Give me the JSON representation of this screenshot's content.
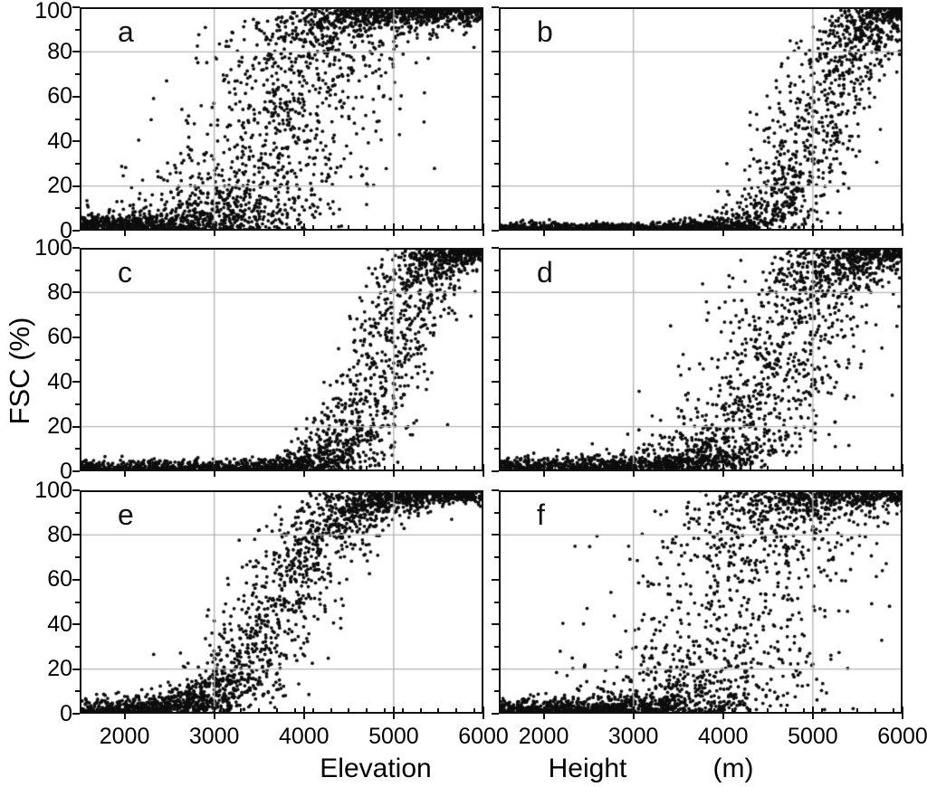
{
  "figure": {
    "background": "#ffffff"
  },
  "chart_data": {
    "type": "scatter",
    "title": "",
    "ylabel": "FSC (%)",
    "xlabel_parts": [
      "Elevation",
      "Height",
      "(m)"
    ],
    "x_range": [
      1500,
      6000
    ],
    "y_range": [
      0,
      100
    ],
    "x_major_ticks": [
      2000,
      3000,
      4000,
      5000,
      6000
    ],
    "x_minor_step": 200,
    "y_major_ticks": [
      0,
      20,
      40,
      60,
      80,
      100
    ],
    "y_minor_step": 10,
    "x_gridlines": [
      3000,
      5000
    ],
    "y_gridlines": [
      20,
      80
    ],
    "grid_color": "#b5b5b5",
    "point_color": "#0d0d0d",
    "axis_color": "#111111",
    "point_radius": 1.9,
    "panels": [
      {
        "label": "a",
        "row": 0,
        "col": 0,
        "model": {
          "n": 3300,
          "midpoint": 3800,
          "spread": 270,
          "jitter": 560,
          "noise": 3.5,
          "seed": 11
        }
      },
      {
        "label": "b",
        "row": 0,
        "col": 1,
        "model": {
          "n": 2700,
          "midpoint": 5060,
          "spread": 250,
          "jitter": 300,
          "noise": 1.6,
          "seed": 22
        }
      },
      {
        "label": "c",
        "row": 1,
        "col": 0,
        "model": {
          "n": 2900,
          "midpoint": 4890,
          "spread": 220,
          "jitter": 280,
          "noise": 2.2,
          "seed": 33
        }
      },
      {
        "label": "d",
        "row": 1,
        "col": 1,
        "model": {
          "n": 2900,
          "midpoint": 4620,
          "spread": 290,
          "jitter": 450,
          "noise": 3.0,
          "seed": 44
        }
      },
      {
        "label": "e",
        "row": 2,
        "col": 0,
        "model": {
          "n": 2700,
          "midpoint": 3760,
          "spread": 330,
          "jitter": 310,
          "noise": 3.0,
          "seed": 55
        }
      },
      {
        "label": "f",
        "row": 2,
        "col": 1,
        "model": {
          "n": 3100,
          "midpoint": 4150,
          "spread": 260,
          "jitter": 640,
          "noise": 3.0,
          "seed": 66
        }
      }
    ]
  }
}
